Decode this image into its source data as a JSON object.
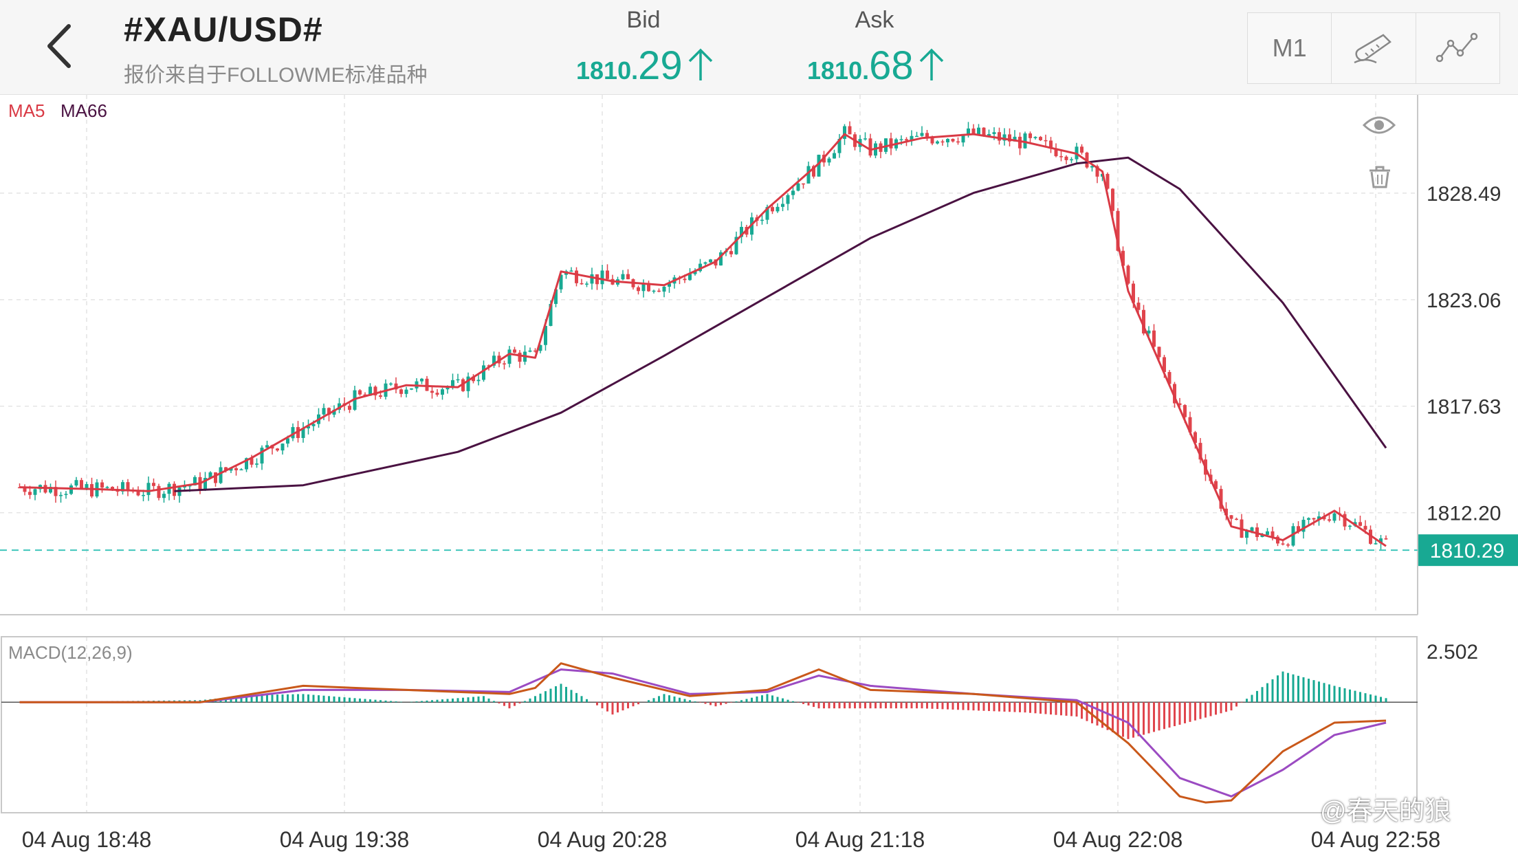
{
  "header": {
    "symbol": "#XAU/USD#",
    "source": "报价来自于FOLLOWME标准品种",
    "bid_label": "Bid",
    "bid_value_small": "1810.",
    "bid_value_big": "29",
    "ask_label": "Ask",
    "ask_value_small": "1810.",
    "ask_value_big": "68",
    "timeframe": "M1",
    "draw_tool_icon": "pen-ruler-icon",
    "indicator_icon": "line-indicator-icon"
  },
  "main_legend": {
    "ma5": "MA5",
    "ma66": "MA66"
  },
  "macd_legend": "MACD(12,26,9)",
  "current_price": "1810.29",
  "watermark": "@春天的狼",
  "colors": {
    "accent": "#18a993",
    "up": "#18a993",
    "down": "#e0444c",
    "ma5": "#d93a45",
    "ma66": "#4a1242",
    "macd_line": "#c9581a",
    "signal_line": "#9b4bc2",
    "current_price_line": "#3fc5bb"
  },
  "chart_data": [
    {
      "type": "candlestick",
      "title": "",
      "x_ticks": [
        "04 Aug 18:48",
        "04 Aug 19:38",
        "04 Aug 20:28",
        "04 Aug 21:18",
        "04 Aug 22:08",
        "04 Aug 22:58"
      ],
      "y_ticks": [
        1828.49,
        1823.06,
        1817.63,
        1812.2
      ],
      "ylim": [
        1807.0,
        1833.5
      ],
      "grid": true,
      "series": [
        {
          "name": "MA5",
          "x": [
            "18:35",
            "18:50",
            "19:00",
            "19:10",
            "19:20",
            "19:30",
            "19:40",
            "19:50",
            "20:00",
            "20:10",
            "20:15",
            "20:20",
            "20:30",
            "20:40",
            "20:50",
            "21:00",
            "21:10",
            "21:15",
            "21:20",
            "21:30",
            "21:40",
            "21:50",
            "22:00",
            "22:05",
            "22:10",
            "22:20",
            "22:30",
            "22:40",
            "22:50",
            "23:00"
          ],
          "values": [
            1813.5,
            1813.4,
            1813.3,
            1813.7,
            1815.0,
            1816.5,
            1818.0,
            1818.7,
            1818.6,
            1820.3,
            1820.1,
            1824.5,
            1824.0,
            1823.8,
            1825.0,
            1827.7,
            1830.0,
            1831.5,
            1830.7,
            1831.3,
            1831.5,
            1831.1,
            1830.5,
            1829.6,
            1823.5,
            1817.5,
            1811.5,
            1810.8,
            1812.3,
            1810.5
          ]
        },
        {
          "name": "MA66",
          "x": [
            "19:05",
            "19:30",
            "20:00",
            "20:20",
            "20:40",
            "21:00",
            "21:20",
            "21:40",
            "22:00",
            "22:10",
            "22:20",
            "22:40",
            "23:00"
          ],
          "values": [
            1813.3,
            1813.6,
            1815.3,
            1817.3,
            1820.2,
            1823.2,
            1826.2,
            1828.5,
            1830.0,
            1830.3,
            1828.7,
            1822.9,
            1815.5
          ]
        }
      ],
      "current_price": 1810.29
    },
    {
      "type": "macd",
      "title": "MACD(12,26,9)",
      "y_ticks": [
        2.502
      ],
      "ylim": [
        -5.4,
        3.2
      ],
      "histogram_x": [
        "18:35",
        "19:10",
        "19:20",
        "19:30",
        "19:50",
        "20:05",
        "20:10",
        "20:20",
        "20:30",
        "20:40",
        "20:50",
        "21:00",
        "21:10",
        "21:20",
        "21:30",
        "21:40",
        "21:50",
        "22:00",
        "22:10",
        "22:20",
        "22:30",
        "22:40",
        "22:50",
        "23:00"
      ],
      "histogram": [
        0.0,
        0.1,
        0.35,
        0.4,
        0.0,
        0.3,
        -0.3,
        0.9,
        -0.6,
        0.4,
        -0.2,
        0.4,
        -0.3,
        -0.3,
        -0.3,
        -0.4,
        -0.5,
        -0.7,
        -1.8,
        -1.1,
        -0.4,
        1.5,
        0.8,
        0.2
      ],
      "macd_x": [
        "18:35",
        "19:10",
        "19:30",
        "19:50",
        "20:10",
        "20:15",
        "20:20",
        "20:30",
        "20:45",
        "21:00",
        "21:10",
        "21:20",
        "21:40",
        "22:00",
        "22:10",
        "22:20",
        "22:25",
        "22:30",
        "22:40",
        "22:50",
        "23:00"
      ],
      "macd": [
        0.0,
        0.0,
        0.8,
        0.6,
        0.4,
        0.7,
        1.9,
        1.2,
        0.3,
        0.6,
        1.6,
        0.6,
        0.4,
        0.0,
        -2.0,
        -4.6,
        -4.9,
        -4.8,
        -2.4,
        -1.0,
        -0.9
      ],
      "signal_x": [
        "18:35",
        "19:10",
        "19:30",
        "19:50",
        "20:10",
        "20:20",
        "20:30",
        "20:45",
        "21:00",
        "21:10",
        "21:20",
        "21:40",
        "22:00",
        "22:10",
        "22:20",
        "22:30",
        "22:40",
        "22:50",
        "23:00"
      ],
      "signal": [
        0.0,
        0.0,
        0.6,
        0.6,
        0.5,
        1.6,
        1.4,
        0.4,
        0.5,
        1.3,
        0.8,
        0.4,
        0.1,
        -1.0,
        -3.7,
        -4.6,
        -3.3,
        -1.6,
        -1.0
      ]
    }
  ]
}
